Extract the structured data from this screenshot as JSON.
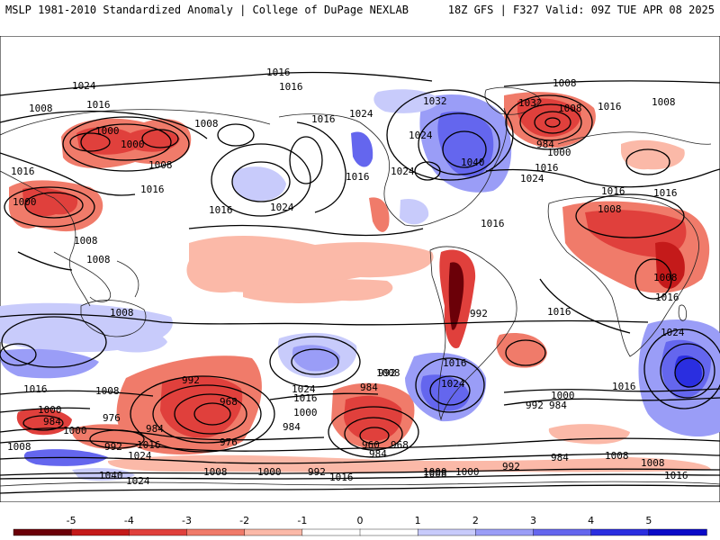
{
  "header": {
    "left": "MSLP 1981-2010 Standardized Anomaly | College of DuPage NEXLAB",
    "right": "18Z GFS | F327 Valid: 09Z TUE APR 08 2025"
  },
  "colorbar": {
    "ticks": [
      "-5",
      "-4",
      "-3",
      "-2",
      "-1",
      "0",
      "1",
      "2",
      "3",
      "4",
      "5"
    ],
    "colors": [
      "#6b0008",
      "#c41a1a",
      "#e0403c",
      "#f07b6a",
      "#fbb9a8",
      "#ffffff",
      "#ffffff",
      "#c8cbfb",
      "#9a9df7",
      "#6466ee",
      "#2a2ee0",
      "#0a0ac8"
    ]
  },
  "isobar_labels": [
    {
      "id": "l1",
      "text": "1024"
    },
    {
      "id": "l2",
      "text": "1016"
    },
    {
      "id": "l3",
      "text": "1008"
    },
    {
      "id": "l4",
      "text": "1016"
    },
    {
      "id": "l5",
      "text": "1000"
    },
    {
      "id": "l6",
      "text": "1000"
    },
    {
      "id": "l7",
      "text": "1008"
    },
    {
      "id": "l8",
      "text": "1008"
    },
    {
      "id": "l9",
      "text": "1016"
    },
    {
      "id": "l10",
      "text": "1016"
    },
    {
      "id": "l11",
      "text": "1000"
    },
    {
      "id": "l12",
      "text": "1016"
    },
    {
      "id": "l13",
      "text": "1008"
    },
    {
      "id": "l14",
      "text": "1008"
    },
    {
      "id": "l15",
      "text": "1016"
    },
    {
      "id": "l16",
      "text": "1024"
    },
    {
      "id": "l17",
      "text": "1016"
    },
    {
      "id": "l18",
      "text": "1024"
    },
    {
      "id": "l19",
      "text": "1032"
    },
    {
      "id": "l20",
      "text": "1024"
    },
    {
      "id": "l21",
      "text": "1040"
    },
    {
      "id": "l22",
      "text": "1024"
    },
    {
      "id": "l23",
      "text": "1016"
    },
    {
      "id": "l24",
      "text": "1032"
    },
    {
      "id": "l25",
      "text": "984"
    },
    {
      "id": "l26",
      "text": "1000"
    },
    {
      "id": "l27",
      "text": "1008"
    },
    {
      "id": "l28",
      "text": "1016"
    },
    {
      "id": "l29",
      "text": "1024"
    },
    {
      "id": "l30",
      "text": "1008"
    },
    {
      "id": "l31",
      "text": "1016"
    },
    {
      "id": "l32",
      "text": "1008"
    },
    {
      "id": "l33",
      "text": "1016"
    },
    {
      "id": "l34",
      "text": "1008"
    },
    {
      "id": "l35",
      "text": "1016"
    },
    {
      "id": "l36",
      "text": "1016"
    },
    {
      "id": "l37",
      "text": "1008"
    },
    {
      "id": "l38",
      "text": "1016"
    },
    {
      "id": "l39",
      "text": "1024"
    },
    {
      "id": "l40",
      "text": "1016"
    },
    {
      "id": "l41",
      "text": "1008"
    },
    {
      "id": "l42",
      "text": "992"
    },
    {
      "id": "l43",
      "text": "968"
    },
    {
      "id": "l44",
      "text": "976"
    },
    {
      "id": "l45",
      "text": "1000"
    },
    {
      "id": "l46",
      "text": "984"
    },
    {
      "id": "l47",
      "text": "1000"
    },
    {
      "id": "l48",
      "text": "984"
    },
    {
      "id": "l49",
      "text": "976"
    },
    {
      "id": "l50",
      "text": "992"
    },
    {
      "id": "l51",
      "text": "1016"
    },
    {
      "id": "l52",
      "text": "984"
    },
    {
      "id": "l53",
      "text": "1024"
    },
    {
      "id": "l54",
      "text": "1040"
    },
    {
      "id": "l55",
      "text": "1024"
    },
    {
      "id": "l56",
      "text": "1008"
    },
    {
      "id": "l57",
      "text": "1000"
    },
    {
      "id": "l58",
      "text": "992"
    },
    {
      "id": "l59",
      "text": "1016"
    },
    {
      "id": "l60",
      "text": "1024"
    },
    {
      "id": "l61",
      "text": "1016"
    },
    {
      "id": "l62",
      "text": "1000"
    },
    {
      "id": "l63",
      "text": "984"
    },
    {
      "id": "l64",
      "text": "992"
    },
    {
      "id": "l65",
      "text": "960"
    },
    {
      "id": "l66",
      "text": "968"
    },
    {
      "id": "l67",
      "text": "984"
    },
    {
      "id": "l68",
      "text": "1008"
    },
    {
      "id": "l69",
      "text": "1000"
    },
    {
      "id": "l70",
      "text": "1016"
    },
    {
      "id": "l71",
      "text": "1024"
    },
    {
      "id": "l72",
      "text": "1008"
    },
    {
      "id": "l73",
      "text": "1000"
    },
    {
      "id": "l74",
      "text": "992"
    },
    {
      "id": "l75",
      "text": "984"
    },
    {
      "id": "l76",
      "text": "992"
    },
    {
      "id": "l77",
      "text": "984"
    },
    {
      "id": "l78",
      "text": "1008"
    },
    {
      "id": "l79",
      "text": "1016"
    },
    {
      "id": "l80",
      "text": "1008"
    },
    {
      "id": "l81",
      "text": "1008"
    },
    {
      "id": "l82",
      "text": "1016"
    },
    {
      "id": "l83",
      "text": "1000"
    },
    {
      "id": "l84",
      "text": "992"
    },
    {
      "id": "l85",
      "text": "1016"
    },
    {
      "id": "l86",
      "text": "1008"
    }
  ]
}
